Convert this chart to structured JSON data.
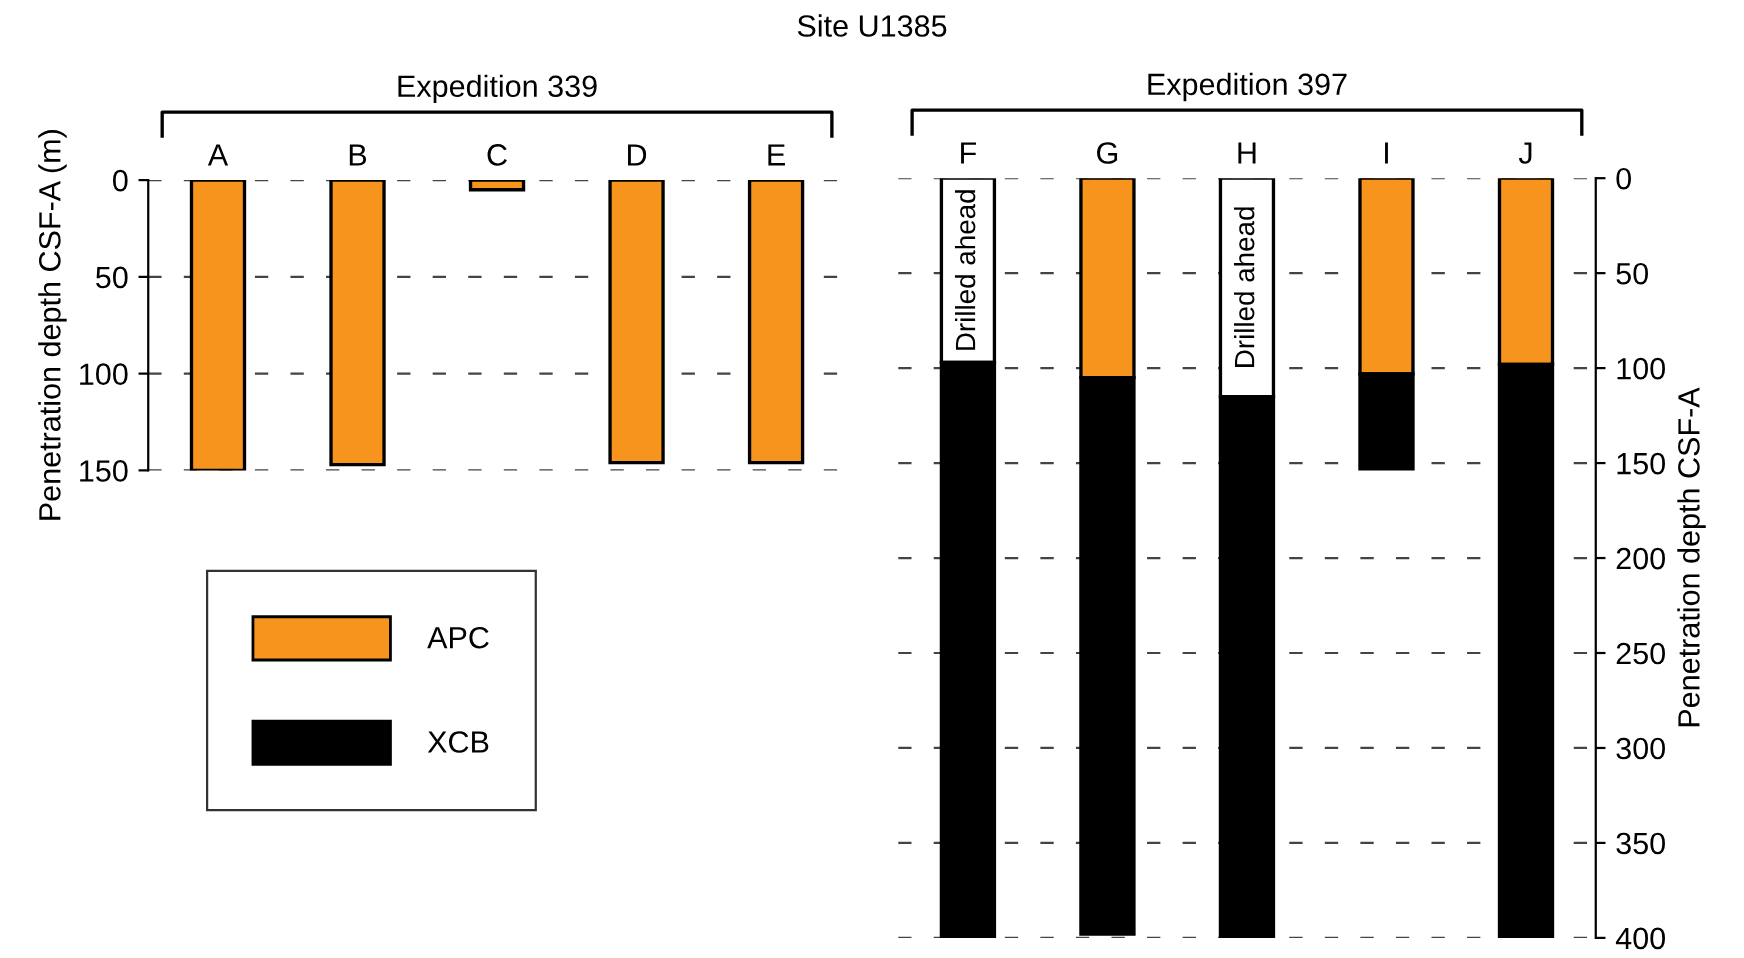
{
  "chart_data": [
    {
      "type": "bar",
      "stacked": true,
      "title": "Expedition 339",
      "ylabel": "Penetration depth CSF-A (m)",
      "categories": [
        "A",
        "B",
        "C",
        "D",
        "E"
      ],
      "series": [
        {
          "color": "#f7941d",
          "values": [
            150,
            147,
            5,
            146,
            146
          ]
        }
      ],
      "ylim": [
        150,
        0
      ],
      "yticks": [
        0,
        50,
        100,
        150
      ],
      "grid": "y",
      "annotations": [
        "Site U1385"
      ]
    },
    {
      "type": "bar",
      "stacked": true,
      "title": "Expedition 397",
      "y2label": "Penetration depth CSF-A",
      "categories": [
        "F",
        "G",
        "H",
        "I",
        "J"
      ],
      "series": [
        {
          "color": "#ffffff",
          "values": [
            97,
            null,
            115,
            null,
            null
          ],
          "value_labels": [
            "Drilled ahead",
            null,
            "Drilled ahead",
            null,
            null
          ]
        },
        {
          "name": "APC",
          "color": "#f7941d",
          "values": [
            null,
            105,
            null,
            103,
            98
          ]
        },
        {
          "name": "XCB",
          "color": "#000000",
          "values": [
            303,
            293,
            285,
            50,
            302
          ]
        }
      ],
      "ylim": [
        400,
        0
      ],
      "yticks": [
        0,
        50,
        100,
        150,
        200,
        250,
        300,
        350,
        400
      ],
      "grid": "y",
      "legend": "left"
    }
  ]
}
